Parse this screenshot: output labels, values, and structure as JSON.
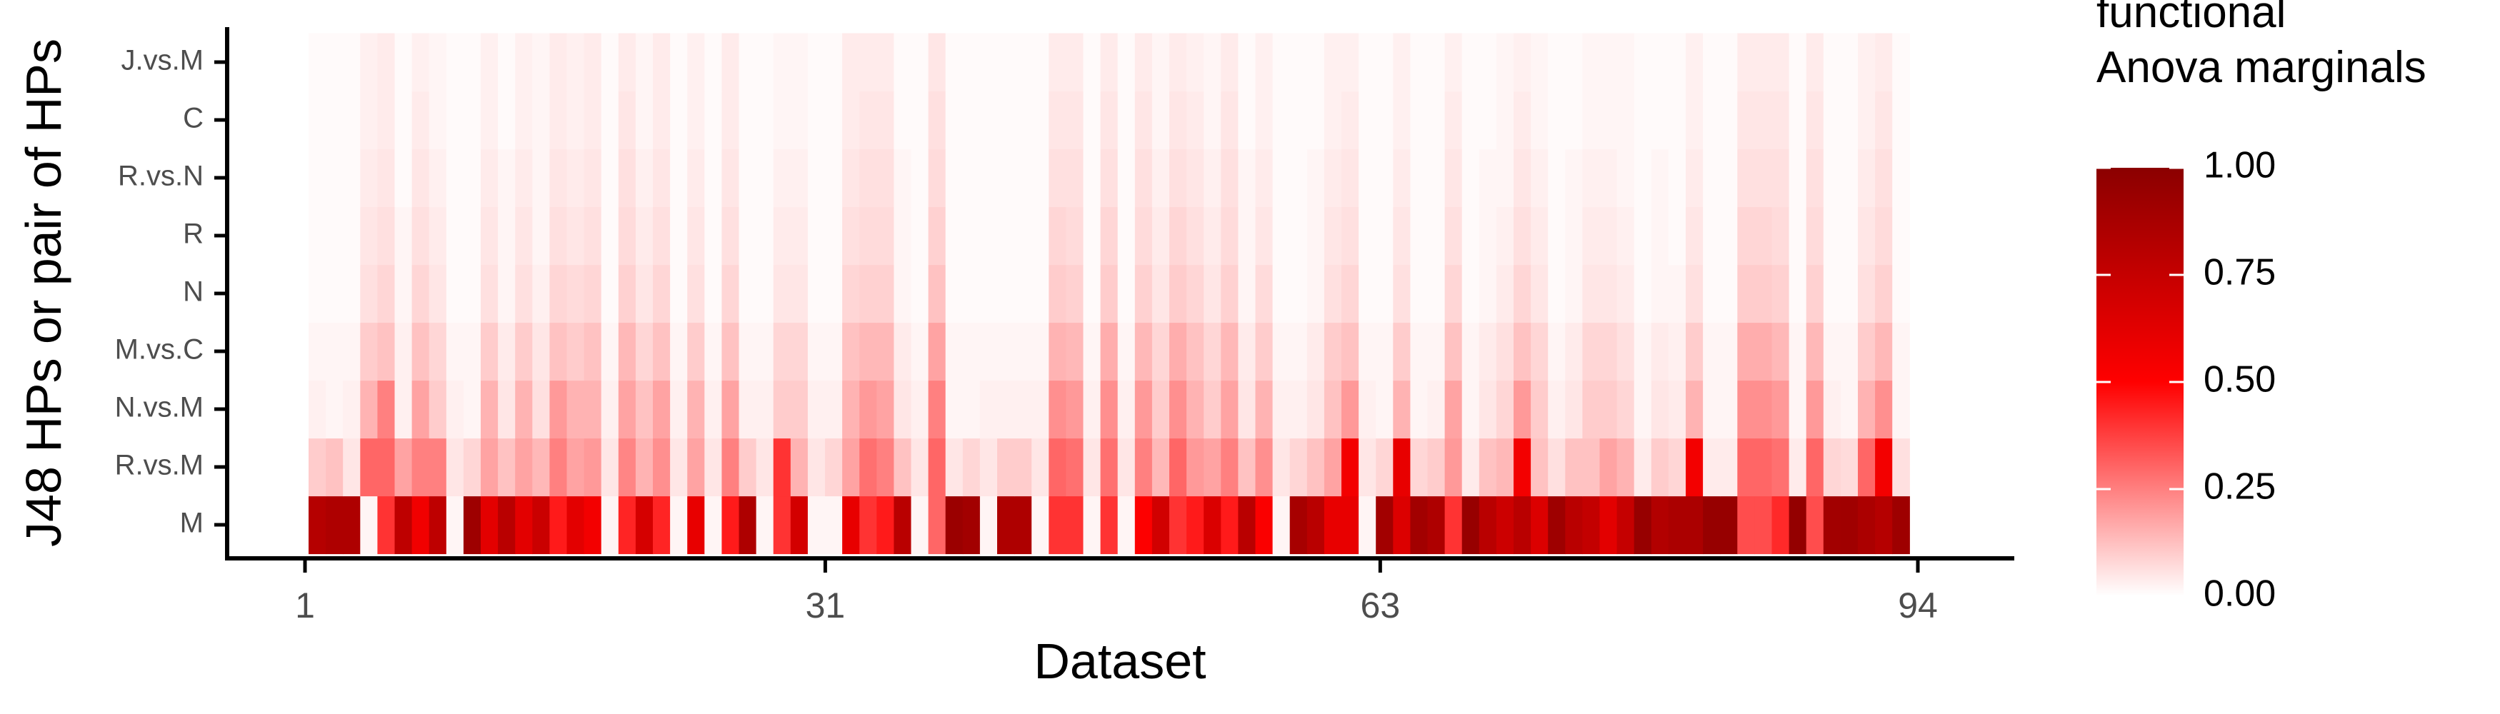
{
  "chart_data": {
    "type": "heatmap",
    "title": "",
    "xlabel": "Dataset",
    "ylabel": "J48 HPs or pair of HPs",
    "x_tick_labels": [
      "1",
      "31",
      "63",
      "94"
    ],
    "x_tick_values": [
      1,
      31,
      63,
      94
    ],
    "xlim": [
      1,
      94
    ],
    "y_categories": [
      "M",
      "R.vs.M",
      "N.vs.M",
      "M.vs.C",
      "N",
      "R",
      "R.vs.N",
      "C",
      "J.vs.M"
    ],
    "legend": {
      "title_lines": [
        "functional",
        "Anova marginals"
      ],
      "ticks": [
        "1.00",
        "0.75",
        "0.50",
        "0.25",
        "0.00"
      ],
      "tick_values": [
        1.0,
        0.75,
        0.5,
        0.25,
        0.0
      ],
      "range": [
        0,
        1
      ],
      "colors": {
        "low": "#ffffff",
        "mid": "#ff0000",
        "high": "#8b0000"
      }
    },
    "grid": false,
    "rows_note": "values: one array per y category (bottom to top), 93 columns, datasets 1..93",
    "values": {
      "M": [
        0.82,
        0.85,
        0.85,
        0.02,
        0.4,
        0.78,
        0.56,
        0.78,
        0.02,
        0.92,
        0.62,
        0.8,
        0.62,
        0.73,
        0.45,
        0.62,
        0.55,
        0.02,
        0.43,
        0.68,
        0.43,
        0.02,
        0.6,
        0.02,
        0.45,
        0.85,
        0.02,
        0.4,
        0.69,
        0.02,
        0.02,
        0.6,
        0.4,
        0.45,
        0.8,
        0.02,
        0.3,
        0.93,
        0.9,
        0.02,
        0.85,
        0.85,
        0.02,
        0.4,
        0.4,
        0.02,
        0.4,
        0.02,
        0.51,
        0.7,
        0.4,
        0.45,
        0.66,
        0.45,
        0.8,
        0.52,
        0.02,
        0.88,
        0.8,
        0.6,
        0.6,
        0.02,
        0.9,
        0.65,
        0.9,
        0.85,
        0.4,
        0.95,
        0.8,
        0.72,
        0.8,
        0.65,
        0.92,
        0.8,
        0.76,
        0.62,
        0.75,
        0.95,
        0.83,
        0.86,
        0.86,
        0.95,
        0.95,
        0.35,
        0.35,
        0.42,
        0.96,
        0.35,
        0.9,
        0.91,
        0.86,
        0.82,
        0.92
      ],
      "R.vs.M": [
        0.1,
        0.12,
        0.05,
        0.3,
        0.3,
        0.18,
        0.25,
        0.25,
        0.05,
        0.08,
        0.18,
        0.12,
        0.18,
        0.14,
        0.25,
        0.18,
        0.2,
        0.05,
        0.24,
        0.15,
        0.22,
        0.05,
        0.18,
        0.05,
        0.25,
        0.1,
        0.05,
        0.4,
        0.15,
        0.05,
        0.08,
        0.18,
        0.28,
        0.25,
        0.12,
        0.05,
        0.3,
        0.05,
        0.08,
        0.05,
        0.1,
        0.1,
        0.05,
        0.3,
        0.28,
        0.05,
        0.28,
        0.05,
        0.25,
        0.14,
        0.3,
        0.2,
        0.18,
        0.25,
        0.12,
        0.22,
        0.05,
        0.08,
        0.12,
        0.18,
        0.55,
        0.05,
        0.08,
        0.6,
        0.08,
        0.1,
        0.2,
        0.04,
        0.12,
        0.14,
        0.55,
        0.12,
        0.06,
        0.12,
        0.12,
        0.18,
        0.15,
        0.04,
        0.1,
        0.08,
        0.55,
        0.04,
        0.04,
        0.3,
        0.3,
        0.28,
        0.04,
        0.3,
        0.08,
        0.07,
        0.3,
        0.55,
        0.06
      ],
      "N.vs.M": [
        0.03,
        0.02,
        0.03,
        0.15,
        0.25,
        0.03,
        0.18,
        0.1,
        0.03,
        0.02,
        0.15,
        0.05,
        0.15,
        0.06,
        0.2,
        0.15,
        0.15,
        0.03,
        0.18,
        0.12,
        0.18,
        0.03,
        0.15,
        0.03,
        0.18,
        0.03,
        0.03,
        0.1,
        0.1,
        0.03,
        0.03,
        0.15,
        0.2,
        0.18,
        0.05,
        0.03,
        0.25,
        0.02,
        0.02,
        0.03,
        0.03,
        0.03,
        0.03,
        0.22,
        0.2,
        0.03,
        0.22,
        0.03,
        0.2,
        0.1,
        0.22,
        0.15,
        0.1,
        0.18,
        0.05,
        0.15,
        0.03,
        0.03,
        0.05,
        0.12,
        0.2,
        0.03,
        0.02,
        0.15,
        0.02,
        0.03,
        0.18,
        0.02,
        0.05,
        0.08,
        0.2,
        0.1,
        0.03,
        0.05,
        0.1,
        0.1,
        0.08,
        0.02,
        0.05,
        0.04,
        0.15,
        0.02,
        0.02,
        0.22,
        0.22,
        0.2,
        0.02,
        0.2,
        0.03,
        0.02,
        0.15,
        0.22,
        0.02
      ],
      "M.vs.C": [
        0.02,
        0.02,
        0.02,
        0.1,
        0.12,
        0.03,
        0.12,
        0.08,
        0.02,
        0.02,
        0.1,
        0.04,
        0.1,
        0.05,
        0.12,
        0.1,
        0.12,
        0.02,
        0.14,
        0.08,
        0.12,
        0.02,
        0.1,
        0.02,
        0.12,
        0.02,
        0.02,
        0.08,
        0.08,
        0.02,
        0.02,
        0.12,
        0.14,
        0.14,
        0.04,
        0.02,
        0.18,
        0.02,
        0.02,
        0.02,
        0.02,
        0.02,
        0.02,
        0.15,
        0.14,
        0.02,
        0.16,
        0.02,
        0.14,
        0.08,
        0.16,
        0.12,
        0.08,
        0.14,
        0.04,
        0.1,
        0.02,
        0.02,
        0.04,
        0.1,
        0.12,
        0.02,
        0.02,
        0.1,
        0.02,
        0.02,
        0.12,
        0.02,
        0.04,
        0.06,
        0.12,
        0.08,
        0.02,
        0.04,
        0.08,
        0.08,
        0.06,
        0.02,
        0.04,
        0.03,
        0.1,
        0.02,
        0.02,
        0.16,
        0.16,
        0.14,
        0.02,
        0.14,
        0.02,
        0.02,
        0.1,
        0.14,
        0.02
      ],
      "N": [
        0.01,
        0.01,
        0.01,
        0.06,
        0.08,
        0.02,
        0.08,
        0.05,
        0.01,
        0.01,
        0.06,
        0.02,
        0.06,
        0.03,
        0.08,
        0.07,
        0.08,
        0.01,
        0.09,
        0.05,
        0.08,
        0.01,
        0.06,
        0.01,
        0.08,
        0.01,
        0.01,
        0.05,
        0.05,
        0.01,
        0.01,
        0.08,
        0.09,
        0.09,
        0.02,
        0.01,
        0.12,
        0.01,
        0.01,
        0.01,
        0.01,
        0.01,
        0.01,
        0.1,
        0.09,
        0.01,
        0.1,
        0.01,
        0.09,
        0.05,
        0.1,
        0.08,
        0.05,
        0.09,
        0.02,
        0.07,
        0.01,
        0.01,
        0.02,
        0.06,
        0.08,
        0.01,
        0.01,
        0.06,
        0.01,
        0.01,
        0.08,
        0.01,
        0.02,
        0.04,
        0.08,
        0.05,
        0.01,
        0.02,
        0.05,
        0.05,
        0.04,
        0.01,
        0.02,
        0.02,
        0.06,
        0.01,
        0.01,
        0.1,
        0.1,
        0.09,
        0.01,
        0.09,
        0.01,
        0.01,
        0.06,
        0.09,
        0.01
      ],
      "R": [
        0.01,
        0.01,
        0.01,
        0.05,
        0.06,
        0.02,
        0.06,
        0.04,
        0.01,
        0.01,
        0.05,
        0.02,
        0.05,
        0.02,
        0.06,
        0.05,
        0.06,
        0.01,
        0.07,
        0.04,
        0.06,
        0.01,
        0.05,
        0.01,
        0.06,
        0.01,
        0.01,
        0.04,
        0.04,
        0.01,
        0.01,
        0.06,
        0.07,
        0.07,
        0.02,
        0.01,
        0.09,
        0.01,
        0.01,
        0.01,
        0.01,
        0.01,
        0.01,
        0.08,
        0.07,
        0.01,
        0.08,
        0.01,
        0.07,
        0.04,
        0.08,
        0.06,
        0.04,
        0.07,
        0.02,
        0.05,
        0.01,
        0.01,
        0.02,
        0.05,
        0.06,
        0.01,
        0.01,
        0.05,
        0.01,
        0.01,
        0.06,
        0.01,
        0.02,
        0.03,
        0.06,
        0.04,
        0.01,
        0.02,
        0.04,
        0.04,
        0.03,
        0.01,
        0.02,
        0.01,
        0.05,
        0.01,
        0.01,
        0.08,
        0.08,
        0.07,
        0.01,
        0.07,
        0.01,
        0.01,
        0.05,
        0.07,
        0.01
      ],
      "R.vs.N": [
        0.01,
        0.01,
        0.01,
        0.04,
        0.05,
        0.01,
        0.05,
        0.03,
        0.01,
        0.01,
        0.04,
        0.02,
        0.04,
        0.02,
        0.05,
        0.04,
        0.05,
        0.01,
        0.06,
        0.03,
        0.05,
        0.01,
        0.04,
        0.01,
        0.05,
        0.01,
        0.01,
        0.03,
        0.03,
        0.01,
        0.01,
        0.05,
        0.06,
        0.06,
        0.02,
        0.01,
        0.07,
        0.01,
        0.01,
        0.01,
        0.01,
        0.01,
        0.01,
        0.06,
        0.06,
        0.01,
        0.06,
        0.01,
        0.06,
        0.03,
        0.06,
        0.05,
        0.03,
        0.06,
        0.02,
        0.04,
        0.01,
        0.01,
        0.02,
        0.04,
        0.05,
        0.01,
        0.01,
        0.04,
        0.01,
        0.01,
        0.05,
        0.01,
        0.02,
        0.02,
        0.05,
        0.03,
        0.01,
        0.02,
        0.03,
        0.03,
        0.02,
        0.01,
        0.02,
        0.01,
        0.04,
        0.01,
        0.01,
        0.06,
        0.06,
        0.06,
        0.01,
        0.06,
        0.01,
        0.01,
        0.04,
        0.06,
        0.01
      ],
      "C": [
        0.01,
        0.01,
        0.01,
        0.03,
        0.04,
        0.01,
        0.04,
        0.02,
        0.01,
        0.01,
        0.03,
        0.01,
        0.03,
        0.02,
        0.04,
        0.03,
        0.04,
        0.01,
        0.05,
        0.02,
        0.04,
        0.01,
        0.03,
        0.01,
        0.04,
        0.01,
        0.01,
        0.02,
        0.02,
        0.01,
        0.01,
        0.04,
        0.05,
        0.05,
        0.01,
        0.01,
        0.06,
        0.01,
        0.01,
        0.01,
        0.01,
        0.01,
        0.01,
        0.05,
        0.05,
        0.01,
        0.05,
        0.01,
        0.05,
        0.02,
        0.05,
        0.04,
        0.02,
        0.05,
        0.01,
        0.03,
        0.01,
        0.01,
        0.01,
        0.03,
        0.04,
        0.01,
        0.01,
        0.03,
        0.01,
        0.01,
        0.04,
        0.01,
        0.01,
        0.02,
        0.04,
        0.02,
        0.01,
        0.01,
        0.02,
        0.02,
        0.02,
        0.01,
        0.01,
        0.01,
        0.03,
        0.01,
        0.01,
        0.05,
        0.05,
        0.05,
        0.01,
        0.05,
        0.01,
        0.01,
        0.03,
        0.05,
        0.01
      ],
      "J.vs.M": [
        0.01,
        0.01,
        0.01,
        0.03,
        0.04,
        0.01,
        0.03,
        0.02,
        0.01,
        0.01,
        0.03,
        0.01,
        0.03,
        0.02,
        0.04,
        0.03,
        0.04,
        0.01,
        0.04,
        0.02,
        0.04,
        0.01,
        0.03,
        0.01,
        0.04,
        0.01,
        0.01,
        0.02,
        0.02,
        0.01,
        0.01,
        0.04,
        0.04,
        0.04,
        0.01,
        0.01,
        0.05,
        0.01,
        0.01,
        0.01,
        0.01,
        0.01,
        0.01,
        0.04,
        0.04,
        0.01,
        0.04,
        0.01,
        0.04,
        0.02,
        0.04,
        0.03,
        0.02,
        0.04,
        0.01,
        0.03,
        0.01,
        0.01,
        0.01,
        0.03,
        0.03,
        0.01,
        0.01,
        0.03,
        0.01,
        0.01,
        0.03,
        0.01,
        0.01,
        0.02,
        0.03,
        0.02,
        0.01,
        0.01,
        0.02,
        0.02,
        0.02,
        0.01,
        0.01,
        0.01,
        0.03,
        0.01,
        0.01,
        0.04,
        0.04,
        0.04,
        0.01,
        0.04,
        0.01,
        0.01,
        0.03,
        0.04,
        0.01
      ]
    }
  }
}
